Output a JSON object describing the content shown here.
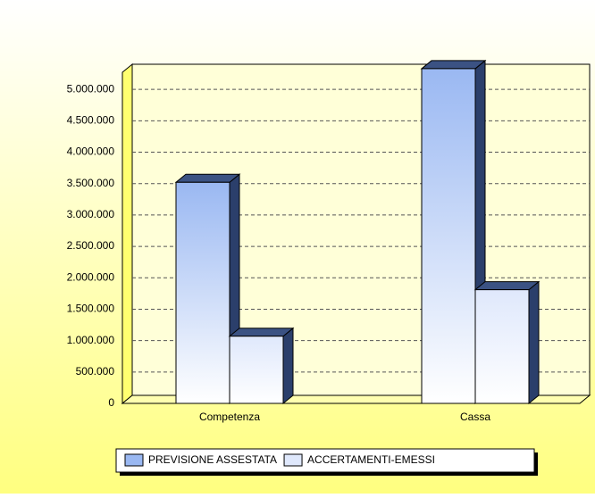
{
  "chart_data": {
    "type": "bar",
    "categories": [
      "Competenza",
      "Cassa"
    ],
    "series": [
      {
        "name": "PREVISIONE ASSESTATA",
        "color": "#9ab8f2",
        "values": [
          3520000,
          5330000
        ]
      },
      {
        "name": "ACCERTAMENTI-EMESSI",
        "color": "#dfe8fc",
        "values": [
          1070000,
          1810000
        ]
      }
    ],
    "ylim": [
      0,
      5400000
    ],
    "yticks": [
      0,
      {
        "value": 500000,
        "label": "500.000"
      },
      {
        "value": 1000000,
        "label": "1.000.000"
      },
      {
        "value": 1500000,
        "label": "1.500.000"
      },
      {
        "value": 2000000,
        "label": "2.000.000"
      },
      {
        "value": 2500000,
        "label": "2.500.000"
      },
      {
        "value": 3000000,
        "label": "3.000.000"
      },
      {
        "value": 3500000,
        "label": "3.500.000"
      },
      {
        "value": 4000000,
        "label": "4.000.000"
      },
      {
        "value": 4500000,
        "label": "4.500.000"
      },
      {
        "value": 5000000,
        "label": "5.000.000"
      }
    ],
    "grid": true,
    "legend": "bottom"
  }
}
